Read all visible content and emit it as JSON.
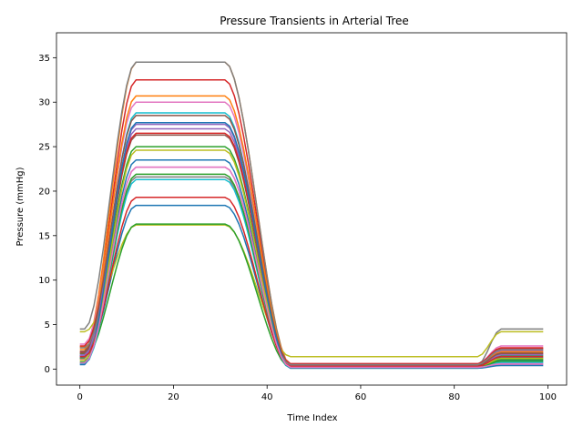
{
  "chart_data": {
    "type": "line",
    "title": "Pressure Transients in Arterial Tree",
    "xlabel": "Time Index",
    "ylabel": "Pressure (mmHg)",
    "xlim": [
      -5,
      104
    ],
    "ylim": [
      -1.8,
      37.8
    ],
    "xticks": [
      0,
      20,
      40,
      60,
      80,
      100
    ],
    "yticks": [
      0,
      5,
      10,
      15,
      20,
      25,
      30,
      35
    ],
    "grid": false,
    "legend": "none",
    "shape": {
      "rise_start": 1,
      "rise_end": 12,
      "plateau_end": 31,
      "fall_end": 45,
      "late_rise_start": 85,
      "late_rise_end": 90,
      "last_index": 99
    },
    "series": [
      {
        "color": "#1f77b4",
        "base": 1.3,
        "peak": 18.4,
        "tail": 0.5,
        "late": 1.0
      },
      {
        "color": "#ff7f0e",
        "base": 2.5,
        "peak": 34.5,
        "tail": 0.6,
        "late": 2.0
      },
      {
        "color": "#2ca02c",
        "base": 1.7,
        "peak": 25.0,
        "tail": 0.3,
        "late": 1.5
      },
      {
        "color": "#d62728",
        "base": 1.9,
        "peak": 32.5,
        "tail": 0.4,
        "late": 2.3
      },
      {
        "color": "#9467bd",
        "base": 1.6,
        "peak": 27.0,
        "tail": 0.4,
        "late": 2.1
      },
      {
        "color": "#8c564b",
        "base": 1.8,
        "peak": 26.3,
        "tail": 0.3,
        "late": 1.7
      },
      {
        "color": "#e377c2",
        "base": 2.8,
        "peak": 30.0,
        "tail": 0.6,
        "late": 2.6
      },
      {
        "color": "#7f7f7f",
        "base": 4.5,
        "peak": 34.5,
        "tail": 0.5,
        "late": 4.5
      },
      {
        "color": "#bcbd22",
        "base": 4.2,
        "peak": 16.2,
        "tail": 1.4,
        "late": 4.2
      },
      {
        "color": "#17becf",
        "base": 1.2,
        "peak": 28.8,
        "tail": 0.2,
        "late": 0.8
      },
      {
        "color": "#1f77b4",
        "base": 1.5,
        "peak": 23.5,
        "tail": 0.3,
        "late": 1.3
      },
      {
        "color": "#ff7f0e",
        "base": 2.2,
        "peak": 30.7,
        "tail": 0.5,
        "late": 1.9
      },
      {
        "color": "#2ca02c",
        "base": 1.2,
        "peak": 16.3,
        "tail": 0.2,
        "late": 1.1
      },
      {
        "color": "#d62728",
        "base": 2.6,
        "peak": 26.5,
        "tail": 0.6,
        "late": 2.4
      },
      {
        "color": "#9467bd",
        "base": 1.5,
        "peak": 27.5,
        "tail": 0.3,
        "late": 1.6
      },
      {
        "color": "#8c564b",
        "base": 2.0,
        "peak": 28.5,
        "tail": 0.4,
        "late": 1.8
      },
      {
        "color": "#e377c2",
        "base": 1.1,
        "peak": 22.7,
        "tail": 0.3,
        "late": 0.5
      },
      {
        "color": "#7f7f7f",
        "base": 2.4,
        "peak": 21.6,
        "tail": 0.5,
        "late": 2.2
      },
      {
        "color": "#bcbd22",
        "base": 1.0,
        "peak": 24.6,
        "tail": 0.2,
        "late": 1.2
      },
      {
        "color": "#17becf",
        "base": 0.6,
        "peak": 21.3,
        "tail": 0.1,
        "late": 0.7
      },
      {
        "color": "#1f77b4",
        "base": 0.5,
        "peak": 27.7,
        "tail": 0.1,
        "late": 0.4
      },
      {
        "color": "#2ca02c",
        "base": 0.8,
        "peak": 21.9,
        "tail": 0.2,
        "late": 0.9
      },
      {
        "color": "#d62728",
        "base": 1.4,
        "peak": 19.3,
        "tail": 0.3,
        "late": 1.4
      },
      {
        "color": "#e377c2",
        "base": 0.7,
        "peak": 22.7,
        "tail": 0.2,
        "late": 0.6
      }
    ]
  }
}
